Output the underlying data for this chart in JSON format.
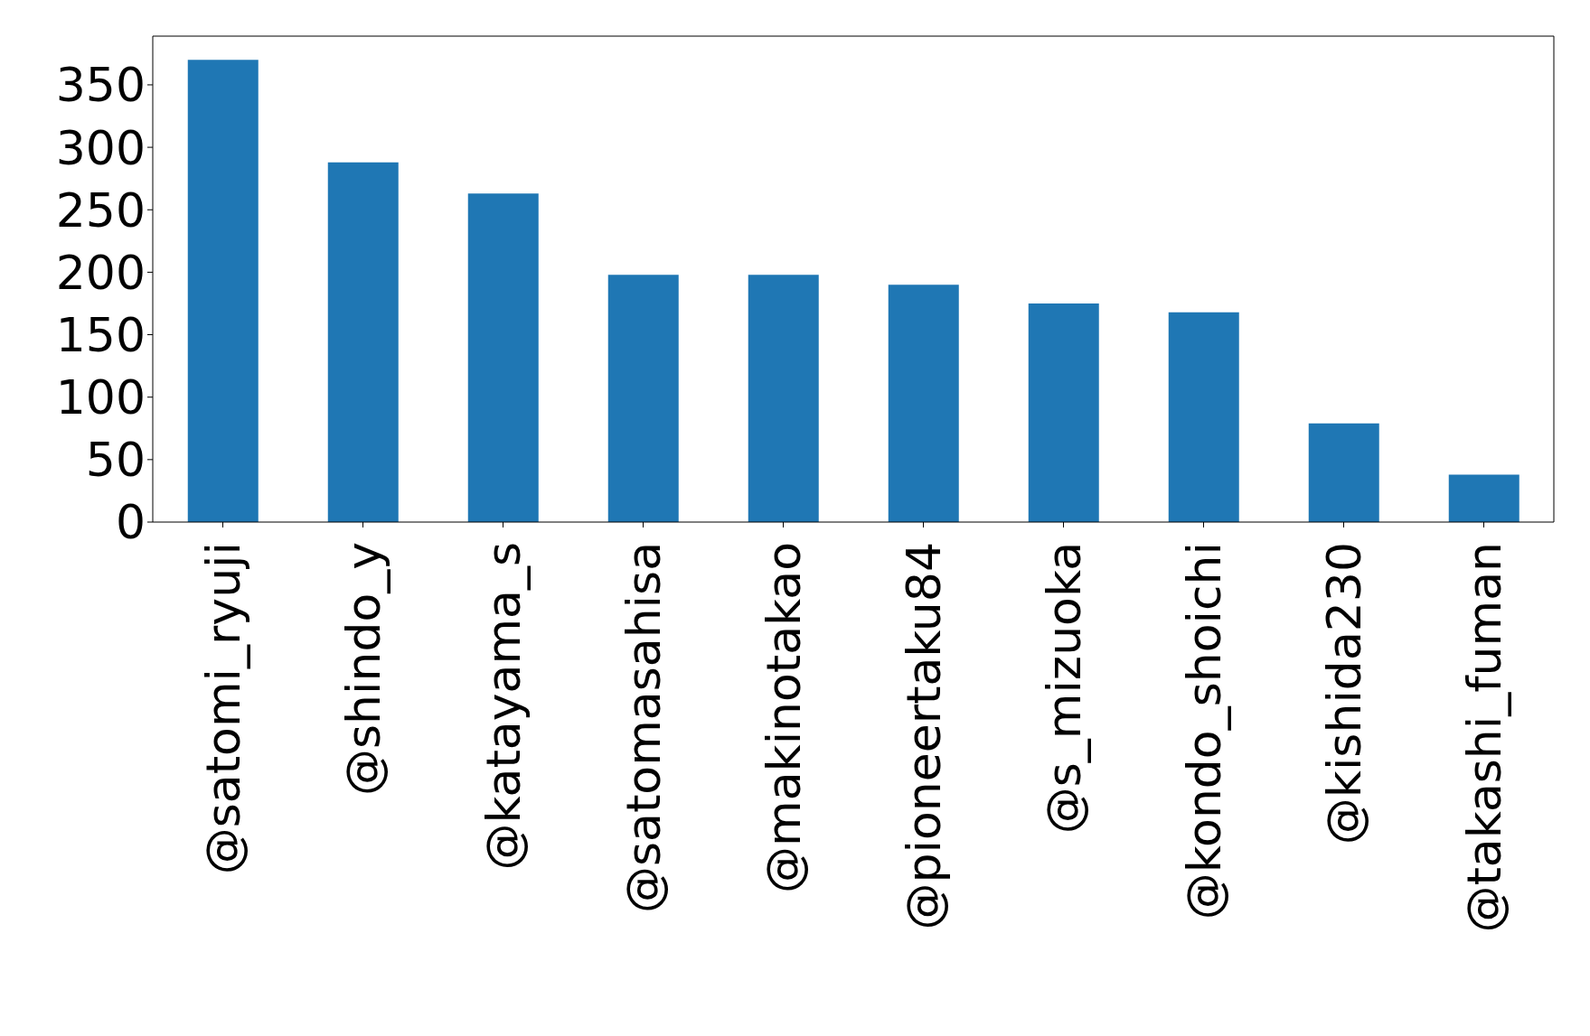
{
  "chart_data": {
    "type": "bar",
    "categories": [
      "@satomi_ryuji",
      "@shindo_y",
      "@katayama_s",
      "@satomasahisa",
      "@makinotakao",
      "@pioneertaku84",
      "@s_mizuoka",
      "@kondo_shoichi",
      "@kishida230",
      "@takashi_fuman"
    ],
    "values": [
      370,
      288,
      263,
      198,
      198,
      190,
      175,
      168,
      79,
      38
    ],
    "color": "#1f77b4",
    "ylim": [
      0,
      389
    ],
    "yticks": [
      0,
      50,
      100,
      150,
      200,
      250,
      300,
      350
    ],
    "grid": false,
    "legend": false
  }
}
